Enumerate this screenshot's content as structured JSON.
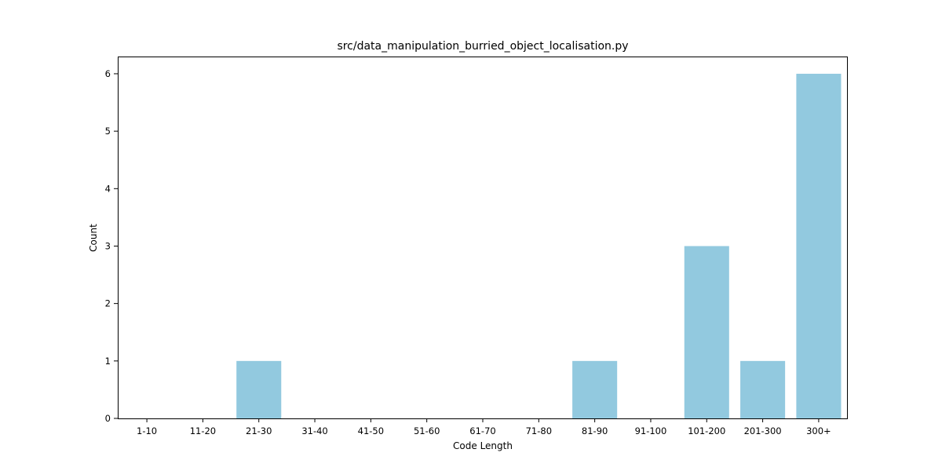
{
  "chart_data": {
    "type": "bar",
    "title": "src/data_manipulation_burried_object_localisation.py",
    "xlabel": "Code Length",
    "ylabel": "Count",
    "categories": [
      "1-10",
      "11-20",
      "21-30",
      "31-40",
      "41-50",
      "51-60",
      "61-70",
      "71-80",
      "81-90",
      "91-100",
      "101-200",
      "201-300",
      "300+"
    ],
    "values": [
      0,
      0,
      1,
      0,
      0,
      0,
      0,
      0,
      1,
      0,
      3,
      1,
      6
    ],
    "ylim": [
      0,
      6.3
    ],
    "yticks": [
      0,
      1,
      2,
      3,
      4,
      5,
      6
    ],
    "grid": false,
    "legend": "none",
    "bar_color": "#92c9df"
  }
}
